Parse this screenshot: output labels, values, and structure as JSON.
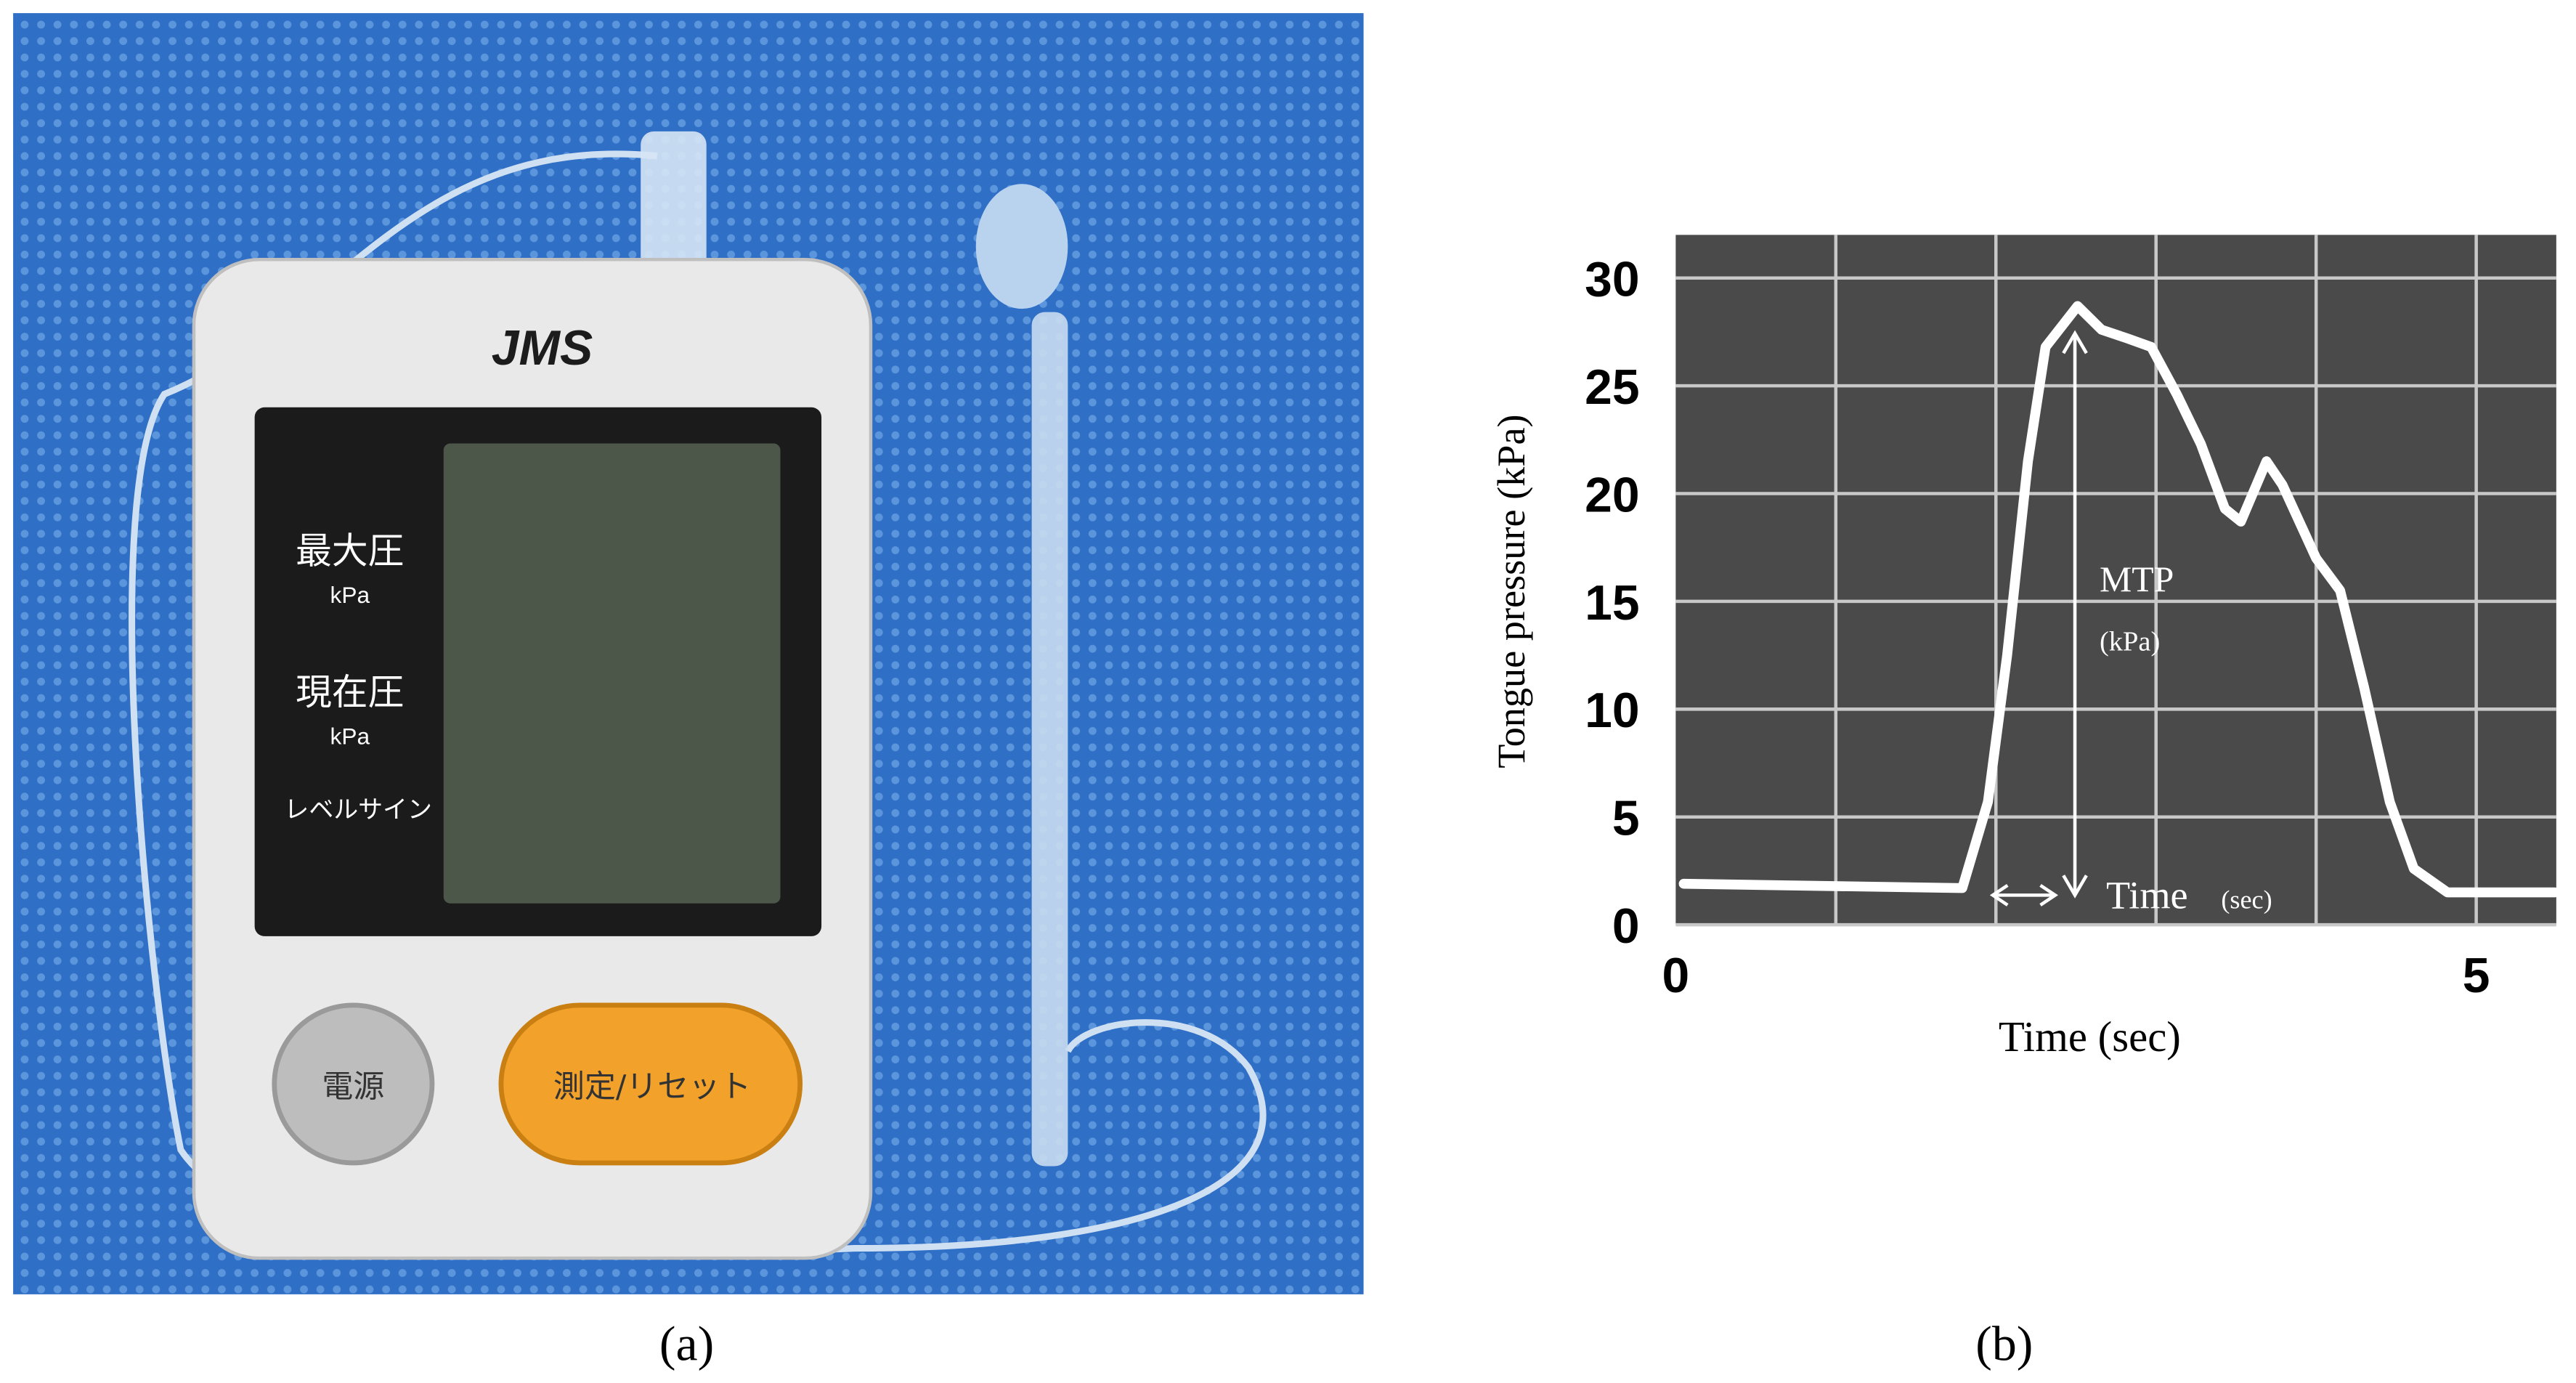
{
  "photo": {
    "brand": "JMS",
    "label_max": "最大圧",
    "unit_max": "kPa",
    "label_current": "現在圧",
    "unit_current": "kPa",
    "label_level": "レベルサイン",
    "button_power": "電源",
    "button_measure": "測定/リセット",
    "caption": "(a)"
  },
  "chart_data": {
    "type": "line",
    "caption": "(b)",
    "y_label": "Tongue pressure (kPa)",
    "x_label": "Time (sec)",
    "annotations": {
      "mtp": "MTP",
      "mtp_unit": "(kPa)",
      "time": "Time",
      "time_unit": "(sec)"
    },
    "x": [
      0.05,
      1.79,
      1.95,
      2.07,
      2.2,
      2.31,
      2.51,
      2.66,
      2.82,
      2.97,
      3.13,
      3.28,
      3.43,
      3.53,
      3.69,
      3.79,
      4.0,
      4.15,
      4.3,
      4.46,
      4.61,
      4.82,
      5.49
    ],
    "values": [
      1.9,
      1.7,
      5.7,
      12.5,
      21.5,
      26.8,
      28.7,
      27.6,
      27.2,
      26.8,
      24.6,
      22.3,
      19.3,
      18.7,
      21.5,
      20.4,
      17,
      15.5,
      11,
      5.7,
      2.6,
      1.5,
      1.5
    ],
    "color": "#ffffff",
    "xlim": [
      0,
      5.5
    ],
    "xticks": [
      0,
      5
    ],
    "xgrid": [
      1,
      2,
      3,
      4,
      5
    ],
    "ylim": [
      0,
      32
    ],
    "yticks": [
      0,
      5,
      10,
      15,
      20,
      25,
      30
    ],
    "grid": true
  }
}
